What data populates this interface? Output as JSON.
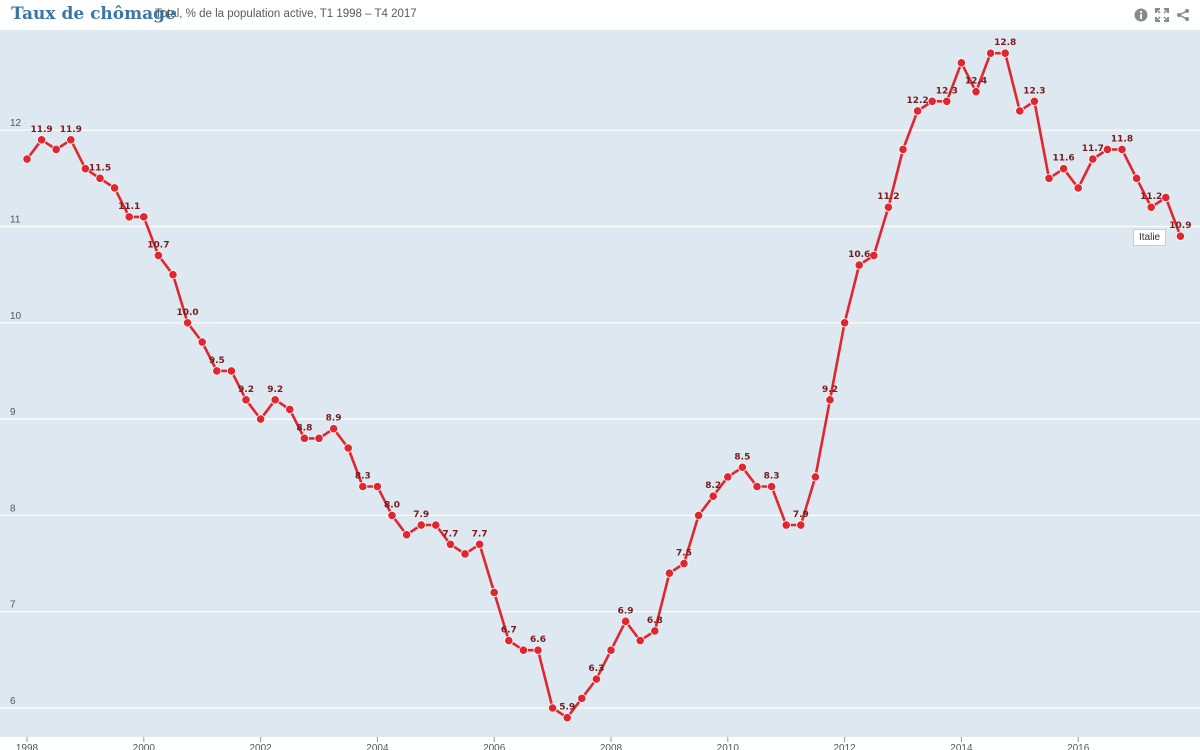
{
  "header": {
    "title": "Taux de chômage",
    "subtitle": "Total, % de la population active, T1 1998 – T4 2017",
    "icons": [
      "info-icon",
      "fullscreen-icon",
      "share-icon"
    ]
  },
  "legend": {
    "label": "Italie"
  },
  "colors": {
    "series": "#e0262f",
    "background": "#dde8f0",
    "grid": "#ffffff",
    "title": "#3a76a8",
    "label": "#7a1a1a"
  },
  "chart_data": {
    "type": "line",
    "title": "Taux de chômage",
    "subtitle": "Total, % de la population active, T1 1998 – T4 2017",
    "ylim": [
      5.8,
      13.0
    ],
    "yticks": [
      6,
      7,
      8,
      9,
      10,
      11,
      12
    ],
    "xticks": [
      "1998",
      "2000",
      "2002",
      "2004",
      "2006",
      "2008",
      "2010",
      "2012",
      "2014",
      "2016"
    ],
    "legend_position": "right-end-label",
    "grid": true,
    "series": [
      {
        "name": "Italie",
        "x": [
          "T1 1998",
          "T2 1998",
          "T3 1998",
          "T4 1998",
          "T1 1999",
          "T2 1999",
          "T3 1999",
          "T4 1999",
          "T1 2000",
          "T2 2000",
          "T3 2000",
          "T4 2000",
          "T1 2001",
          "T2 2001",
          "T3 2001",
          "T4 2001",
          "T1 2002",
          "T2 2002",
          "T3 2002",
          "T4 2002",
          "T1 2003",
          "T2 2003",
          "T3 2003",
          "T4 2003",
          "T1 2004",
          "T2 2004",
          "T3 2004",
          "T4 2004",
          "T1 2005",
          "T2 2005",
          "T3 2005",
          "T4 2005",
          "T1 2006",
          "T2 2006",
          "T3 2006",
          "T4 2006",
          "T1 2007",
          "T2 2007",
          "T3 2007",
          "T4 2007",
          "T1 2008",
          "T2 2008",
          "T3 2008",
          "T4 2008",
          "T1 2009",
          "T2 2009",
          "T3 2009",
          "T4 2009",
          "T1 2010",
          "T2 2010",
          "T3 2010",
          "T4 2010",
          "T1 2011",
          "T2 2011",
          "T3 2011",
          "T4 2011",
          "T1 2012",
          "T2 2012",
          "T3 2012",
          "T4 2012",
          "T1 2013",
          "T2 2013",
          "T3 2013",
          "T4 2013",
          "T1 2014",
          "T2 2014",
          "T3 2014",
          "T4 2014",
          "T1 2015",
          "T2 2015",
          "T3 2015",
          "T4 2015",
          "T1 2016",
          "T2 2016",
          "T3 2016",
          "T4 2016",
          "T1 2017",
          "T2 2017",
          "T3 2017",
          "T4 2017"
        ],
        "values": [
          11.7,
          11.9,
          11.8,
          11.9,
          11.6,
          11.5,
          11.4,
          11.1,
          11.1,
          10.7,
          10.5,
          10.0,
          9.8,
          9.5,
          9.5,
          9.2,
          9.0,
          9.2,
          9.1,
          8.8,
          8.8,
          8.9,
          8.7,
          8.3,
          8.3,
          8.0,
          7.8,
          7.9,
          7.9,
          7.7,
          7.6,
          7.7,
          7.2,
          6.7,
          6.6,
          6.6,
          6.0,
          5.9,
          6.1,
          6.3,
          6.6,
          6.9,
          6.7,
          6.8,
          7.4,
          7.5,
          8.0,
          8.2,
          8.4,
          8.5,
          8.3,
          8.3,
          7.9,
          7.9,
          8.4,
          9.2,
          10.0,
          10.6,
          10.7,
          11.2,
          11.8,
          12.2,
          12.3,
          12.3,
          12.7,
          12.4,
          12.8,
          12.8,
          12.2,
          12.3,
          11.5,
          11.6,
          11.4,
          11.7,
          11.8,
          11.8,
          11.5,
          11.2,
          11.3,
          10.9
        ],
        "labels": [
          {
            "i": 1,
            "text": "11.9"
          },
          {
            "i": 3,
            "text": "11.9"
          },
          {
            "i": 5,
            "text": "11.5"
          },
          {
            "i": 7,
            "text": "11.1"
          },
          {
            "i": 9,
            "text": "10.7"
          },
          {
            "i": 11,
            "text": "10.0"
          },
          {
            "i": 13,
            "text": "9.5"
          },
          {
            "i": 15,
            "text": "9.2"
          },
          {
            "i": 17,
            "text": "9.2"
          },
          {
            "i": 19,
            "text": "8.8"
          },
          {
            "i": 21,
            "text": "8.9"
          },
          {
            "i": 23,
            "text": "8.3"
          },
          {
            "i": 25,
            "text": "8.0"
          },
          {
            "i": 27,
            "text": "7.9"
          },
          {
            "i": 29,
            "text": "7.7"
          },
          {
            "i": 31,
            "text": "7.7"
          },
          {
            "i": 33,
            "text": "6.7"
          },
          {
            "i": 35,
            "text": "6.6"
          },
          {
            "i": 37,
            "text": "5.9"
          },
          {
            "i": 39,
            "text": "6.3"
          },
          {
            "i": 41,
            "text": "6.9"
          },
          {
            "i": 43,
            "text": "6.8"
          },
          {
            "i": 45,
            "text": "7.5"
          },
          {
            "i": 47,
            "text": "8.2"
          },
          {
            "i": 49,
            "text": "8.5"
          },
          {
            "i": 51,
            "text": "8.3"
          },
          {
            "i": 53,
            "text": "7.9"
          },
          {
            "i": 55,
            "text": "9.2"
          },
          {
            "i": 57,
            "text": "10.6"
          },
          {
            "i": 59,
            "text": "11.2"
          },
          {
            "i": 61,
            "text": "12.2"
          },
          {
            "i": 63,
            "text": "12.3"
          },
          {
            "i": 65,
            "text": "12.4"
          },
          {
            "i": 67,
            "text": "12.8"
          },
          {
            "i": 69,
            "text": "12.3"
          },
          {
            "i": 71,
            "text": "11.6"
          },
          {
            "i": 73,
            "text": "11.7"
          },
          {
            "i": 75,
            "text": "11.8"
          },
          {
            "i": 77,
            "text": "11.2"
          },
          {
            "i": 79,
            "text": "10.9"
          }
        ]
      }
    ]
  }
}
